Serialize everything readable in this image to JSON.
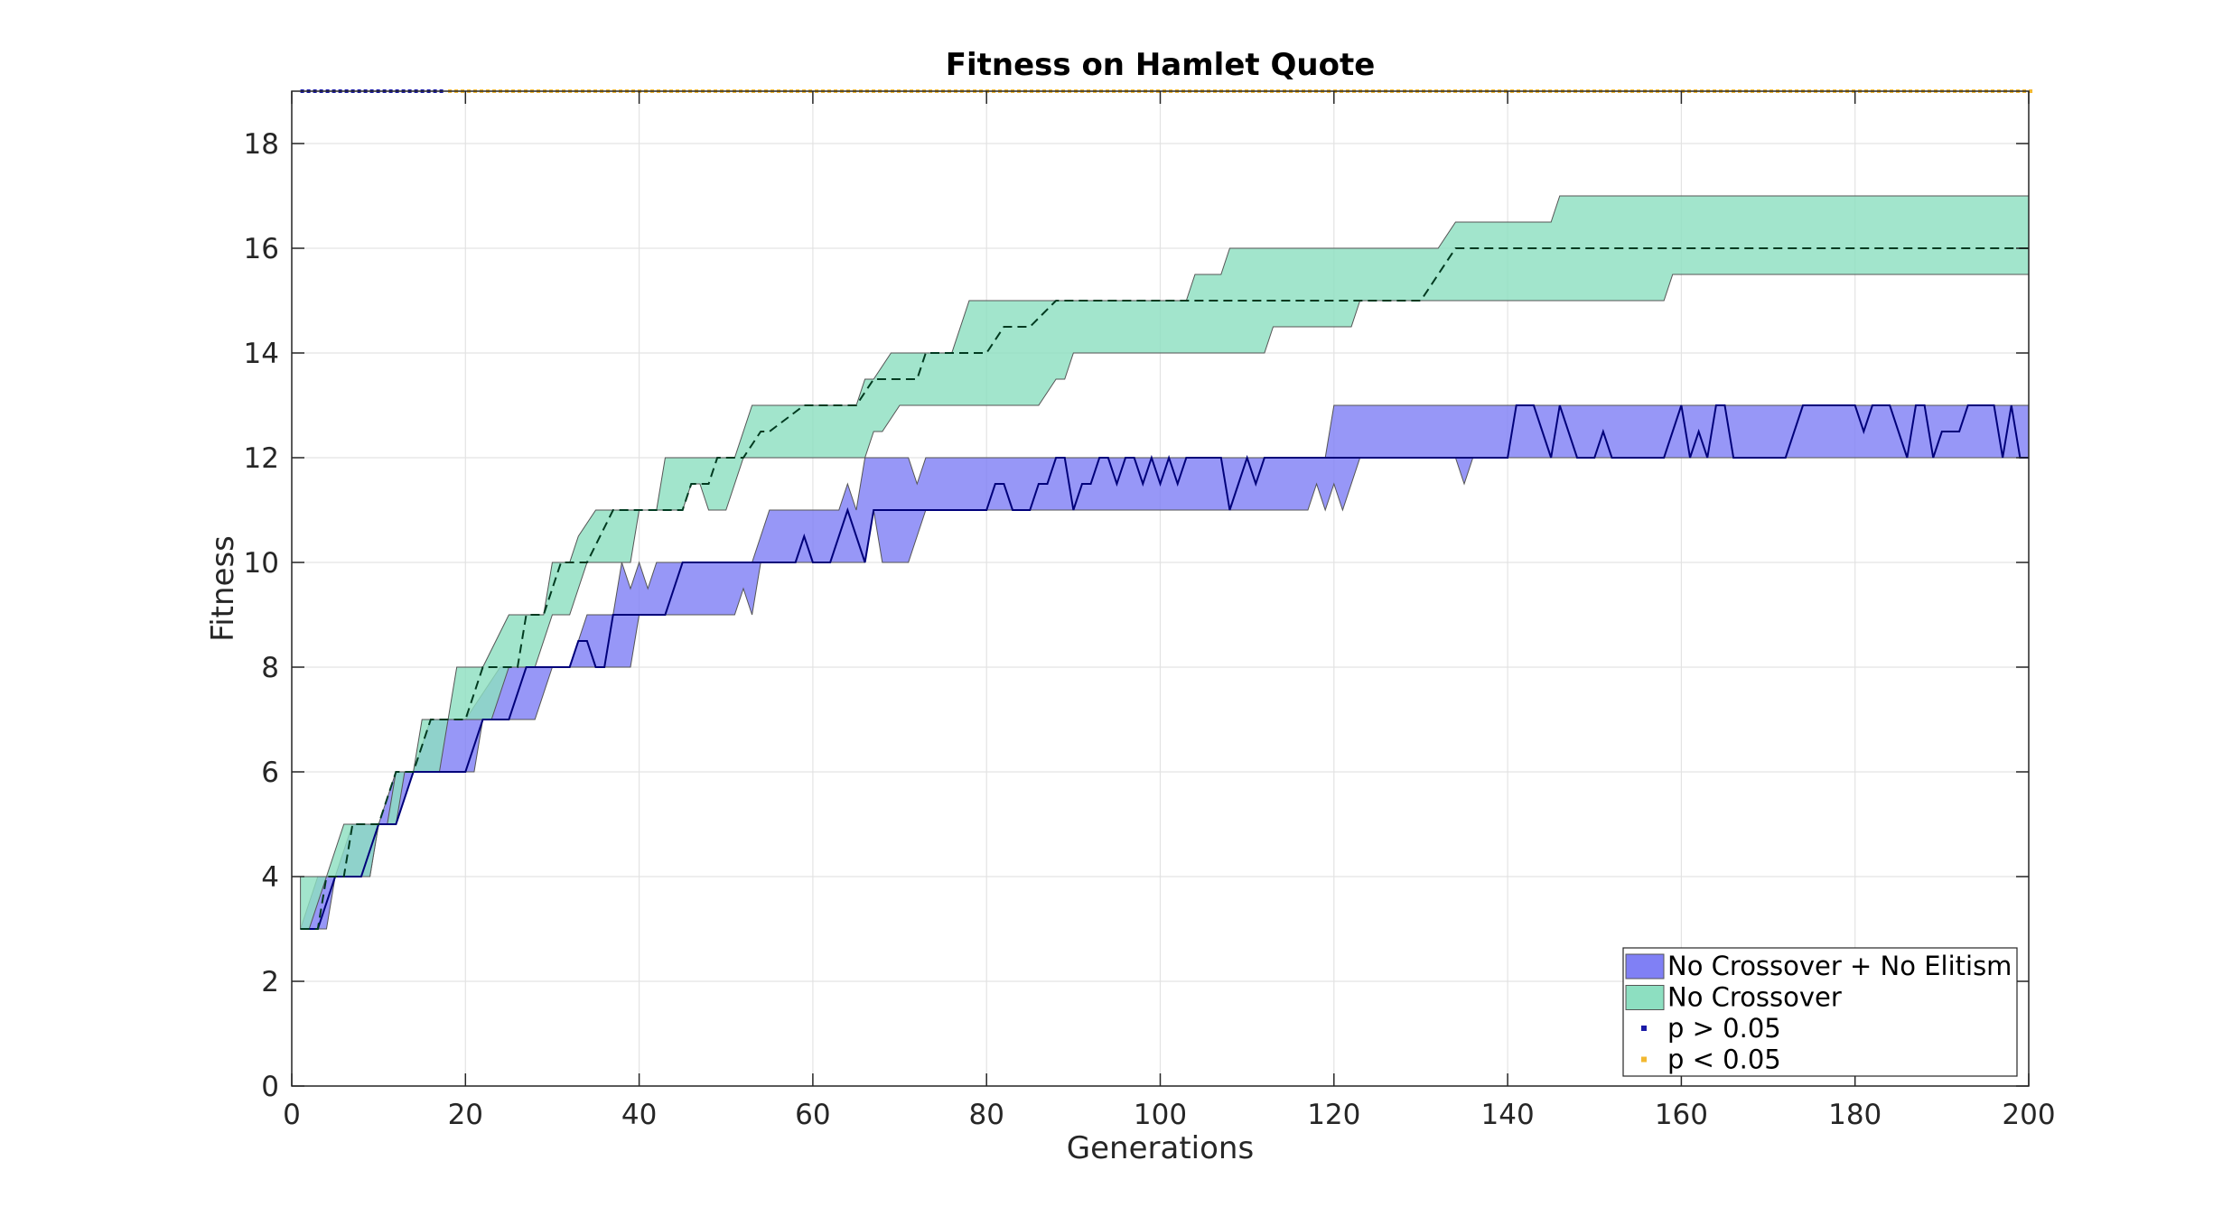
{
  "chart_data": {
    "type": "area",
    "title": "Fitness on Hamlet Quote",
    "xlabel": "Generations",
    "ylabel": "Fitness",
    "xlim": [
      0,
      200
    ],
    "ylim": [
      0,
      19
    ],
    "xticks": [
      0,
      20,
      40,
      60,
      80,
      100,
      120,
      140,
      160,
      180,
      200
    ],
    "yticks": [
      0,
      2,
      4,
      6,
      8,
      10,
      12,
      14,
      16,
      18
    ],
    "grid": true,
    "legend_position": "bottom-right",
    "series": [
      {
        "name": "No Crossover + No Elitism",
        "color": "#8080f5",
        "line_color": "#00007a",
        "median": [
          [
            1,
            3
          ],
          [
            3,
            3
          ],
          [
            5,
            4
          ],
          [
            8,
            4
          ],
          [
            10,
            5
          ],
          [
            12,
            5
          ],
          [
            14,
            6
          ],
          [
            20,
            6
          ],
          [
            22,
            7
          ],
          [
            25,
            7
          ],
          [
            27,
            8
          ],
          [
            32,
            8
          ],
          [
            33,
            8.5
          ],
          [
            34,
            8.5
          ],
          [
            35,
            8
          ],
          [
            36,
            8
          ],
          [
            37,
            9
          ],
          [
            43,
            9
          ],
          [
            45,
            10
          ],
          [
            55,
            10
          ],
          [
            58,
            10
          ],
          [
            59,
            10.5
          ],
          [
            60,
            10
          ],
          [
            62,
            10
          ],
          [
            64,
            11
          ],
          [
            66,
            10
          ],
          [
            67,
            11
          ],
          [
            80,
            11
          ],
          [
            81,
            11.5
          ],
          [
            82,
            11.5
          ],
          [
            83,
            11
          ],
          [
            85,
            11
          ],
          [
            86,
            11.5
          ],
          [
            87,
            11.5
          ],
          [
            88,
            12
          ],
          [
            89,
            12
          ],
          [
            90,
            11
          ],
          [
            91,
            11.5
          ],
          [
            92,
            11.5
          ],
          [
            93,
            12
          ],
          [
            94,
            12
          ],
          [
            95,
            11.5
          ],
          [
            96,
            12
          ],
          [
            97,
            12
          ],
          [
            98,
            11.5
          ],
          [
            99,
            12
          ],
          [
            100,
            11.5
          ],
          [
            101,
            12
          ],
          [
            102,
            11.5
          ],
          [
            103,
            12
          ],
          [
            107,
            12
          ],
          [
            108,
            11
          ],
          [
            109,
            11.5
          ],
          [
            110,
            12
          ],
          [
            111,
            11.5
          ],
          [
            112,
            12
          ],
          [
            133,
            12
          ],
          [
            134,
            12
          ],
          [
            140,
            12
          ],
          [
            141,
            13
          ],
          [
            143,
            13
          ],
          [
            145,
            12
          ],
          [
            146,
            13
          ],
          [
            148,
            12
          ],
          [
            150,
            12
          ],
          [
            151,
            12.5
          ],
          [
            152,
            12
          ],
          [
            158,
            12
          ],
          [
            160,
            13
          ],
          [
            161,
            12
          ],
          [
            162,
            12.5
          ],
          [
            163,
            12
          ],
          [
            164,
            13
          ],
          [
            165,
            13
          ],
          [
            166,
            12
          ],
          [
            172,
            12
          ],
          [
            174,
            13
          ],
          [
            180,
            13
          ],
          [
            181,
            12.5
          ],
          [
            182,
            13
          ],
          [
            184,
            13
          ],
          [
            186,
            12
          ],
          [
            187,
            13
          ],
          [
            188,
            13
          ],
          [
            189,
            12
          ],
          [
            190,
            12.5
          ],
          [
            192,
            12.5
          ],
          [
            193,
            13
          ],
          [
            196,
            13
          ],
          [
            197,
            12
          ],
          [
            198,
            13
          ],
          [
            199,
            12
          ],
          [
            200,
            12
          ]
        ],
        "upper": [
          [
            1,
            3
          ],
          [
            3,
            4
          ],
          [
            5,
            4
          ],
          [
            7,
            5
          ],
          [
            10,
            5
          ],
          [
            12,
            6
          ],
          [
            14,
            6
          ],
          [
            16,
            7
          ],
          [
            20,
            7
          ],
          [
            22,
            7.5
          ],
          [
            24,
            8
          ],
          [
            32,
            8
          ],
          [
            34,
            9
          ],
          [
            37,
            9
          ],
          [
            38,
            10
          ],
          [
            39,
            9.5
          ],
          [
            40,
            10
          ],
          [
            41,
            9.5
          ],
          [
            42,
            10
          ],
          [
            44,
            10
          ],
          [
            53,
            10
          ],
          [
            55,
            11
          ],
          [
            63,
            11
          ],
          [
            64,
            11.5
          ],
          [
            65,
            11
          ],
          [
            66,
            12
          ],
          [
            71,
            12
          ],
          [
            72,
            11.5
          ],
          [
            73,
            12
          ],
          [
            119,
            12
          ],
          [
            120,
            13
          ],
          [
            200,
            13
          ]
        ],
        "lower": [
          [
            1,
            3
          ],
          [
            4,
            3
          ],
          [
            5,
            4
          ],
          [
            9,
            4
          ],
          [
            10,
            5
          ],
          [
            12,
            5
          ],
          [
            14,
            6
          ],
          [
            21,
            6
          ],
          [
            22,
            7
          ],
          [
            28,
            7
          ],
          [
            30,
            8
          ],
          [
            39,
            8
          ],
          [
            40,
            9
          ],
          [
            51,
            9
          ],
          [
            52,
            9.5
          ],
          [
            53,
            9
          ],
          [
            54,
            10
          ],
          [
            66,
            10
          ],
          [
            67,
            11
          ],
          [
            68,
            10
          ],
          [
            71,
            10
          ],
          [
            73,
            11
          ],
          [
            117,
            11
          ],
          [
            118,
            11.5
          ],
          [
            119,
            11
          ],
          [
            120,
            11.5
          ],
          [
            121,
            11
          ],
          [
            123,
            12
          ],
          [
            134,
            12
          ],
          [
            135,
            11.5
          ],
          [
            136,
            12
          ],
          [
            200,
            12
          ]
        ]
      },
      {
        "name": "No Crossover",
        "color": "#8ddfc1",
        "line_color": "#003a20",
        "median": [
          [
            1,
            3
          ],
          [
            3,
            3
          ],
          [
            4,
            4
          ],
          [
            6,
            4
          ],
          [
            7,
            5
          ],
          [
            10,
            5
          ],
          [
            12,
            6
          ],
          [
            14,
            6
          ],
          [
            16,
            7
          ],
          [
            20,
            7
          ],
          [
            22,
            8
          ],
          [
            26,
            8
          ],
          [
            27,
            9
          ],
          [
            29,
            9
          ],
          [
            31,
            10
          ],
          [
            34,
            10
          ],
          [
            37,
            11
          ],
          [
            45,
            11
          ],
          [
            46,
            11.5
          ],
          [
            48,
            11.5
          ],
          [
            49,
            12
          ],
          [
            52,
            12
          ],
          [
            54,
            12.5
          ],
          [
            55,
            12.5
          ],
          [
            59,
            13
          ],
          [
            65,
            13
          ],
          [
            67,
            13.5
          ],
          [
            72,
            13.5
          ],
          [
            73,
            14
          ],
          [
            80,
            14
          ],
          [
            82,
            14.5
          ],
          [
            85,
            14.5
          ],
          [
            88,
            15
          ],
          [
            128,
            15
          ],
          [
            130,
            15
          ],
          [
            132,
            15.5
          ],
          [
            134,
            16
          ],
          [
            200,
            16
          ]
        ],
        "upper": [
          [
            1,
            4
          ],
          [
            4,
            4
          ],
          [
            6,
            5
          ],
          [
            11,
            5
          ],
          [
            12,
            6
          ],
          [
            14,
            6
          ],
          [
            15,
            7
          ],
          [
            18,
            7
          ],
          [
            19,
            8
          ],
          [
            22,
            8
          ],
          [
            25,
            9
          ],
          [
            29,
            9
          ],
          [
            30,
            10
          ],
          [
            32,
            10
          ],
          [
            33,
            10.5
          ],
          [
            35,
            11
          ],
          [
            42,
            11
          ],
          [
            43,
            12
          ],
          [
            51,
            12
          ],
          [
            53,
            13
          ],
          [
            65,
            13
          ],
          [
            66,
            13.5
          ],
          [
            67,
            13.5
          ],
          [
            69,
            14
          ],
          [
            76,
            14
          ],
          [
            78,
            15
          ],
          [
            103,
            15
          ],
          [
            104,
            15.5
          ],
          [
            107,
            15.5
          ],
          [
            108,
            16
          ],
          [
            132,
            16
          ],
          [
            134,
            16.5
          ],
          [
            145,
            16.5
          ],
          [
            146,
            17
          ],
          [
            200,
            17
          ]
        ],
        "lower": [
          [
            1,
            3
          ],
          [
            2,
            3
          ],
          [
            4,
            4
          ],
          [
            9,
            4
          ],
          [
            10,
            5
          ],
          [
            12,
            5
          ],
          [
            13,
            6
          ],
          [
            17,
            6
          ],
          [
            18,
            7
          ],
          [
            23,
            7
          ],
          [
            25,
            8
          ],
          [
            28,
            8
          ],
          [
            30,
            9
          ],
          [
            32,
            9
          ],
          [
            34,
            10
          ],
          [
            39,
            10
          ],
          [
            40,
            11
          ],
          [
            44,
            11
          ],
          [
            45,
            11
          ],
          [
            46,
            11.5
          ],
          [
            47,
            11.5
          ],
          [
            48,
            11
          ],
          [
            50,
            11
          ],
          [
            52,
            12
          ],
          [
            55,
            12
          ],
          [
            57,
            12
          ],
          [
            66,
            12
          ],
          [
            67,
            12.5
          ],
          [
            68,
            12.5
          ],
          [
            70,
            13
          ],
          [
            86,
            13
          ],
          [
            88,
            13.5
          ],
          [
            89,
            13.5
          ],
          [
            90,
            14
          ],
          [
            112,
            14
          ],
          [
            113,
            14.5
          ],
          [
            122,
            14.5
          ],
          [
            123,
            15
          ],
          [
            130,
            15
          ],
          [
            131,
            15
          ],
          [
            158,
            15
          ],
          [
            159,
            15.5
          ],
          [
            200,
            15.5
          ]
        ]
      }
    ],
    "significance": {
      "y": 19,
      "entries": [
        {
          "label": "p > 0.05",
          "color": "#1a1aa6",
          "x_range": [
            1,
            17
          ]
        },
        {
          "label": "p < 0.05",
          "color": "#f2b830",
          "x_range": [
            18,
            200
          ]
        }
      ]
    }
  }
}
